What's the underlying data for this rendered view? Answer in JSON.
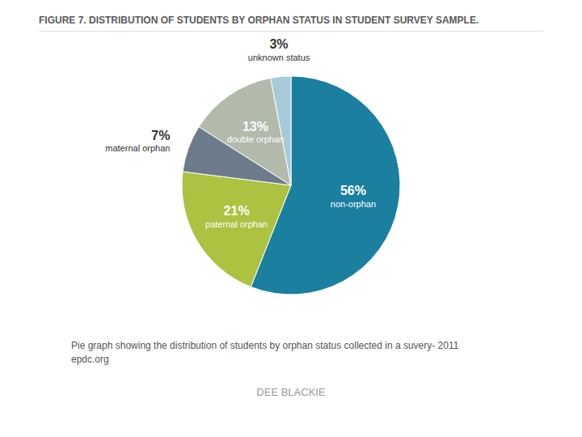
{
  "chart_data": {
    "type": "pie",
    "title": "FIGURE 7. DISTRIBUTION OF STUDENTS BY ORPHAN STATUS IN STUDENT SURVEY SAMPLE.",
    "annotations": [
      "Pie graph showing the distribution of students by orphan status collected in a suvery- 2011",
      "epdc.org",
      "DEE BLACKIE"
    ],
    "categories": [
      "non-orphan",
      "paternal orphan",
      "maternal orphan",
      "double orphan",
      "unknown status"
    ],
    "values": [
      56,
      21,
      7,
      13,
      3
    ],
    "value_labels": [
      "56%",
      "21%",
      "7%",
      "13%",
      "3%"
    ],
    "colors": [
      "#1b7fa0",
      "#adc240",
      "#6d7b8a",
      "#b2baaa",
      "#a8cad8"
    ],
    "data_labels": true
  }
}
